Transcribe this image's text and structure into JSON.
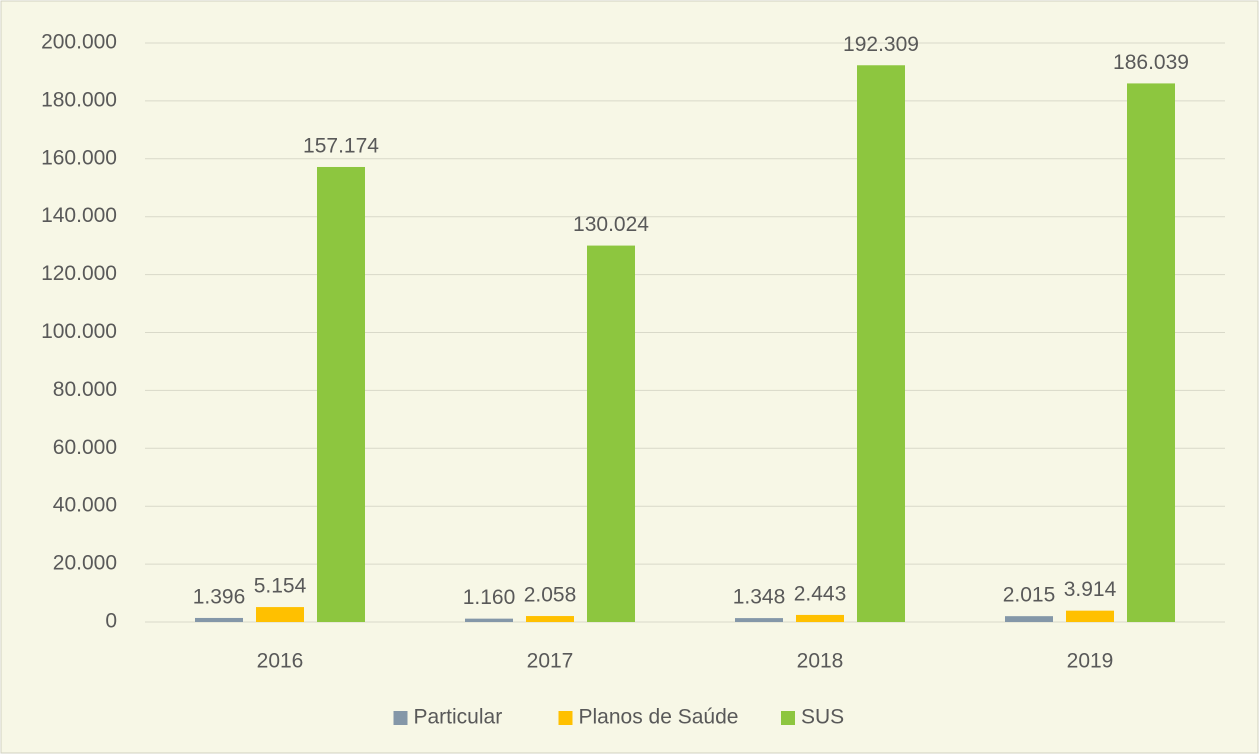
{
  "chart_data": {
    "type": "bar",
    "categories": [
      "2016",
      "2017",
      "2018",
      "2019"
    ],
    "series": [
      {
        "name": "Particular",
        "color": "#8497a8",
        "values": [
          1396,
          1160,
          1348,
          2015
        ],
        "value_labels": [
          "1.396",
          "1.160",
          "1.348",
          "2.015"
        ]
      },
      {
        "name": "Planos de Saúde",
        "color": "#ffc000",
        "values": [
          5154,
          2058,
          2443,
          3914
        ],
        "value_labels": [
          "5.154",
          "2.058",
          "2.443",
          "3.914"
        ]
      },
      {
        "name": "SUS",
        "color": "#8dc63f",
        "values": [
          157174,
          130024,
          192309,
          186039
        ],
        "value_labels": [
          "157.174",
          "130.024",
          "192.309",
          "186.039"
        ]
      }
    ],
    "ylim": [
      0,
      200000
    ],
    "yticks": [
      0,
      {
        "value": 20000,
        "label": "20.000"
      },
      {
        "value": 40000,
        "label": "40.000"
      },
      {
        "value": 60000,
        "label": "60.000"
      },
      {
        "value": 80000,
        "label": "80.000"
      },
      {
        "value": 100000,
        "label": "100.000"
      },
      {
        "value": 120000,
        "label": "120.000"
      },
      {
        "value": 140000,
        "label": "140.000"
      },
      {
        "value": 160000,
        "label": "160.000"
      },
      {
        "value": 180000,
        "label": "180.000"
      },
      {
        "value": 200000,
        "label": "200.000"
      }
    ],
    "grid": true,
    "legend": "bottom"
  }
}
